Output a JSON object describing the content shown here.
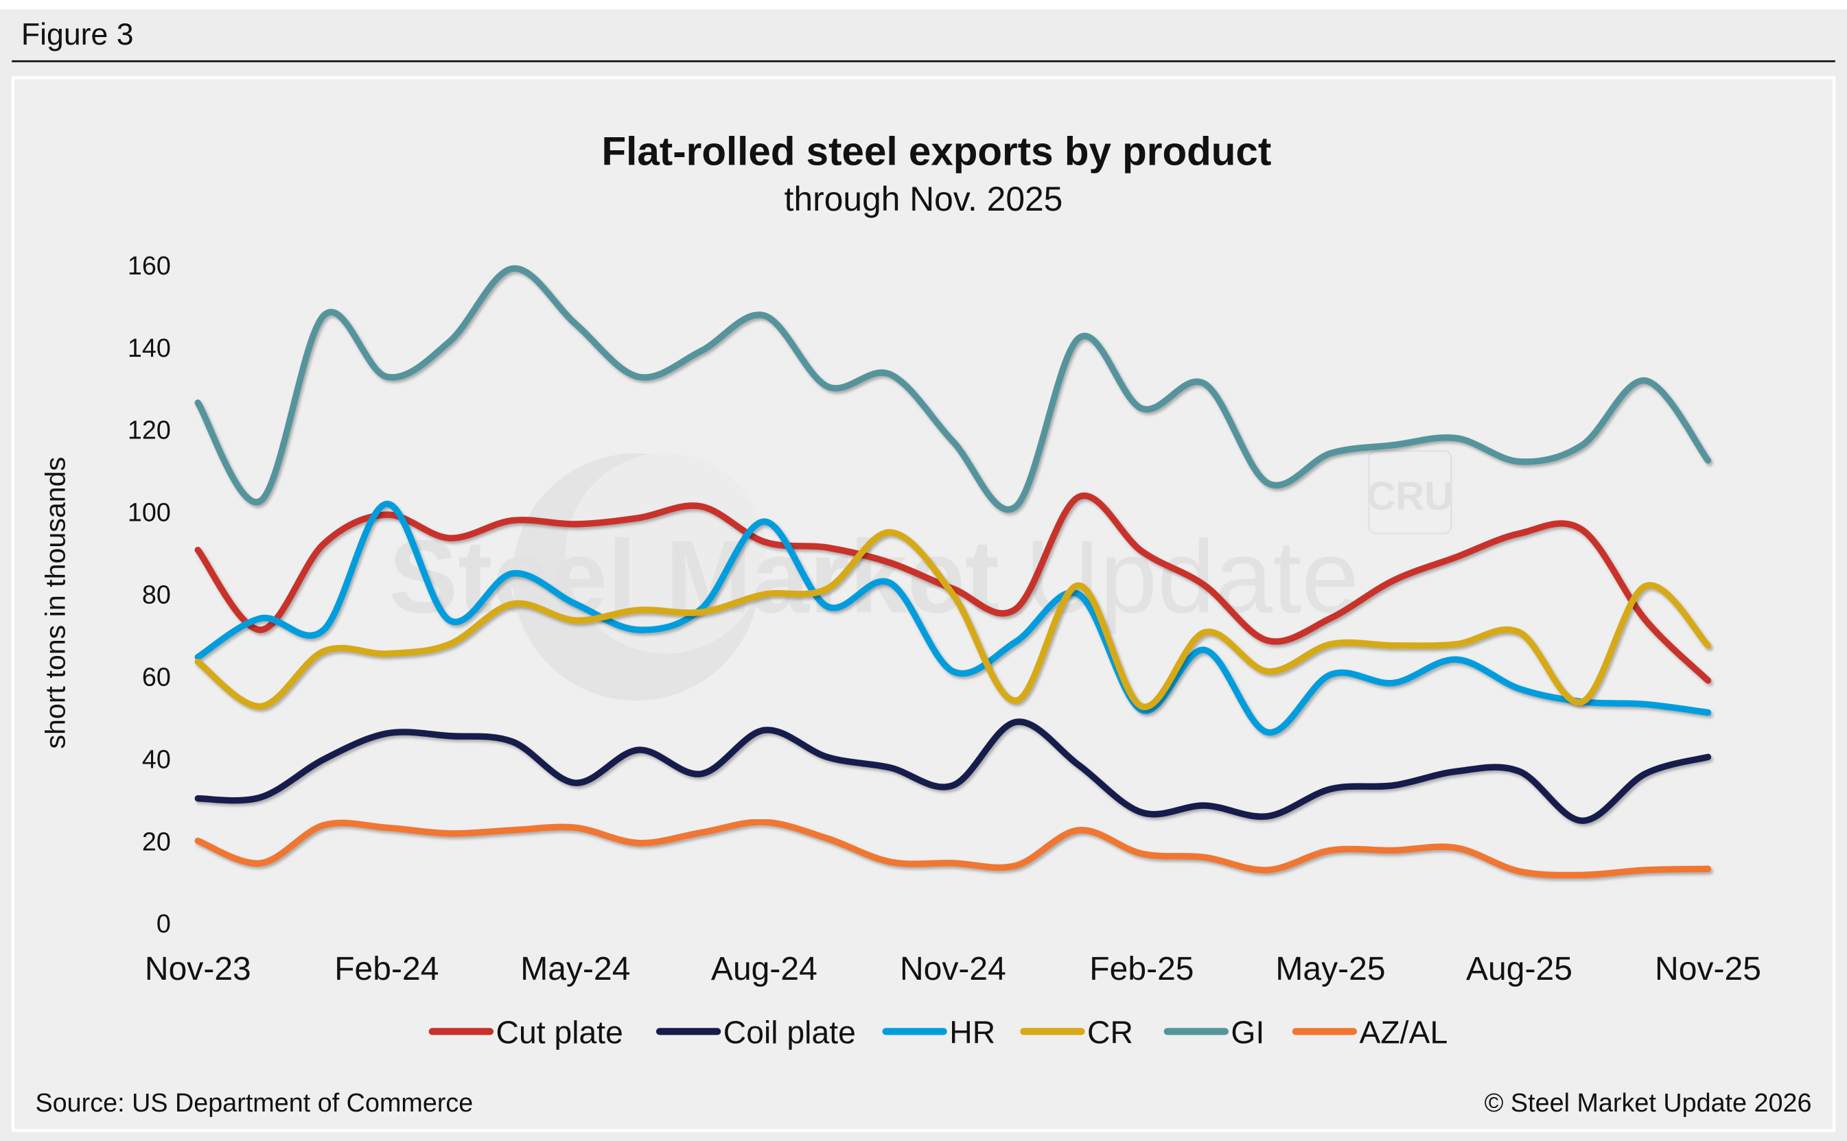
{
  "figure_label": "Figure 3",
  "footer": {
    "source": "Source: US Department of Commerce",
    "copyright": "© Steel Market Update 2026"
  },
  "watermark": {
    "text_bold": "Steel Market",
    "text_light": "Update",
    "logo_text": "CRU"
  },
  "chart_data": {
    "type": "line",
    "title": "Flat-rolled steel exports by product",
    "subtitle": "through Nov. 2025",
    "xlabel": "",
    "ylabel": "short tons in thousands",
    "ylim": [
      0,
      160
    ],
    "yticks": [
      0,
      20,
      40,
      60,
      80,
      100,
      120,
      140,
      160
    ],
    "grid": false,
    "legend_position": "bottom",
    "smooth": true,
    "x": [
      "Nov-23",
      "Dec-23",
      "Jan-24",
      "Feb-24",
      "Mar-24",
      "Apr-24",
      "May-24",
      "Jun-24",
      "Jul-24",
      "Aug-24",
      "Sep-24",
      "Oct-24",
      "Nov-24",
      "Dec-24",
      "Jan-25",
      "Feb-25",
      "Mar-25",
      "Apr-25",
      "May-25",
      "Jun-25",
      "Jul-25",
      "Aug-25",
      "Sep-25",
      "Oct-25",
      "Nov-25"
    ],
    "xtick_labels": [
      "Nov-23",
      "Feb-24",
      "May-24",
      "Aug-24",
      "Nov-24",
      "Feb-25",
      "May-25",
      "Aug-25",
      "Nov-25"
    ],
    "xtick_indices": [
      0,
      3,
      6,
      9,
      12,
      15,
      18,
      21,
      24
    ],
    "series": [
      {
        "name": "Cut plate",
        "color": "#C8302A",
        "values": [
          90.7,
          71.3,
          92.2,
          99.3,
          93.6,
          97.9,
          97.0,
          98.5,
          101.3,
          92.7,
          91.3,
          87.6,
          81.3,
          76.4,
          103.6,
          90.4,
          82.1,
          68.7,
          74.1,
          83.3,
          89.0,
          94.7,
          95.6,
          73.8,
          59.0
        ]
      },
      {
        "name": "Coil plate",
        "color": "#161C4B",
        "values": [
          30.3,
          30.6,
          39.8,
          46.1,
          45.5,
          44.1,
          34.1,
          42.1,
          36.3,
          46.9,
          40.4,
          37.8,
          33.5,
          48.9,
          38.4,
          26.9,
          28.6,
          26.0,
          32.6,
          33.5,
          36.9,
          36.9,
          24.9,
          36.3,
          40.4
        ]
      },
      {
        "name": "HR",
        "color": "#009DDE",
        "values": [
          64.7,
          74.1,
          71.3,
          101.9,
          73.6,
          85.0,
          77.6,
          71.3,
          76.4,
          97.6,
          77.0,
          82.7,
          61.2,
          68.4,
          79.9,
          51.8,
          66.4,
          46.4,
          60.4,
          58.4,
          64.1,
          57.0,
          53.8,
          53.2,
          51.2
        ]
      },
      {
        "name": "CR",
        "color": "#D6A916",
        "values": [
          63.5,
          52.7,
          66.1,
          65.5,
          67.8,
          77.6,
          73.6,
          76.1,
          75.6,
          79.9,
          81.3,
          95.0,
          79.9,
          54.1,
          82.1,
          52.7,
          70.7,
          61.2,
          67.8,
          67.5,
          67.8,
          70.7,
          53.8,
          81.9,
          67.5
        ]
      },
      {
        "name": "GI",
        "color": "#55949C",
        "values": [
          126.5,
          102.7,
          147.7,
          132.8,
          141.4,
          159.1,
          145.7,
          132.8,
          139.1,
          147.7,
          130.5,
          133.4,
          117.1,
          101.3,
          142.2,
          125.1,
          131.1,
          107.0,
          114.2,
          116.2,
          117.9,
          112.2,
          116.2,
          131.9,
          112.5
        ]
      },
      {
        "name": "AZ/AL",
        "color": "#F07630",
        "values": [
          20.0,
          14.6,
          23.8,
          23.2,
          21.8,
          22.6,
          23.2,
          19.5,
          22.0,
          24.6,
          20.6,
          14.9,
          14.6,
          14.0,
          22.6,
          16.9,
          16.0,
          12.9,
          17.7,
          17.7,
          18.3,
          12.6,
          11.7,
          12.9,
          13.2
        ]
      }
    ]
  }
}
